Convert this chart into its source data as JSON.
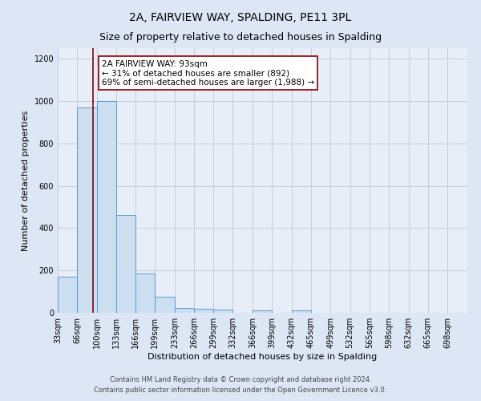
{
  "title": "2A, FAIRVIEW WAY, SPALDING, PE11 3PL",
  "subtitle": "Size of property relative to detached houses in Spalding",
  "xlabel": "Distribution of detached houses by size in Spalding",
  "ylabel": "Number of detached properties",
  "bin_labels": [
    "33sqm",
    "66sqm",
    "100sqm",
    "133sqm",
    "166sqm",
    "199sqm",
    "233sqm",
    "266sqm",
    "299sqm",
    "332sqm",
    "366sqm",
    "399sqm",
    "432sqm",
    "465sqm",
    "499sqm",
    "532sqm",
    "565sqm",
    "598sqm",
    "632sqm",
    "665sqm",
    "698sqm"
  ],
  "bin_edges": [
    33,
    66,
    100,
    133,
    166,
    199,
    233,
    266,
    299,
    332,
    366,
    399,
    432,
    465,
    499,
    532,
    565,
    598,
    632,
    665,
    698,
    731
  ],
  "bar_heights": [
    170,
    970,
    1000,
    462,
    185,
    75,
    22,
    18,
    14,
    0,
    12,
    0,
    12,
    0,
    0,
    0,
    0,
    0,
    0,
    0,
    0
  ],
  "bar_color": "#ccdff0",
  "bar_edge_color": "#5b9bd5",
  "property_line_x": 93,
  "property_line_color": "#8b0000",
  "annotation_line1": "2A FAIRVIEW WAY: 93sqm",
  "annotation_line2": "← 31% of detached houses are smaller (892)",
  "annotation_line3": "69% of semi-detached houses are larger (1,988) →",
  "annotation_box_color": "white",
  "annotation_box_edge_color": "#8b0000",
  "ylim": [
    0,
    1250
  ],
  "yticks": [
    0,
    200,
    400,
    600,
    800,
    1000,
    1200
  ],
  "background_color": "#dce6f5",
  "plot_background_color": "#e8eef7",
  "footer_line1": "Contains HM Land Registry data © Crown copyright and database right 2024.",
  "footer_line2": "Contains public sector information licensed under the Open Government Licence v3.0.",
  "title_fontsize": 10,
  "subtitle_fontsize": 9,
  "axis_label_fontsize": 8,
  "tick_fontsize": 7,
  "annotation_fontsize": 7.5,
  "footer_fontsize": 6
}
